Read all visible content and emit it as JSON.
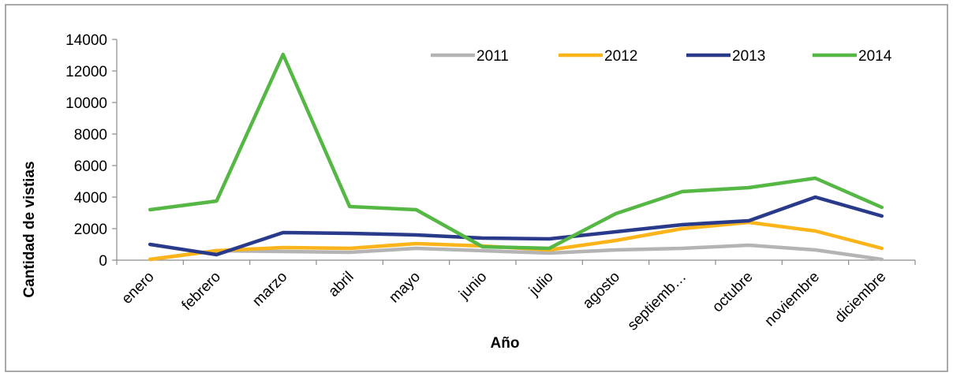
{
  "chart_data": {
    "type": "line",
    "title": "",
    "xlabel": "Año",
    "ylabel": "Cantidad de vistias",
    "ylim": [
      0,
      14000
    ],
    "yticks": [
      0,
      2000,
      4000,
      6000,
      8000,
      10000,
      12000,
      14000
    ],
    "grid": false,
    "legend_position": "top-right",
    "categories": [
      "enero",
      "febrero",
      "marzo",
      "abril",
      "mayo",
      "junio",
      "julio",
      "agosto",
      "septiemb…",
      "octubre",
      "noviembre",
      "diciembre"
    ],
    "series": [
      {
        "name": "2011",
        "color": "#b4b4b4",
        "values": [
          50,
          600,
          550,
          500,
          750,
          600,
          450,
          650,
          750,
          950,
          650,
          50
        ]
      },
      {
        "name": "2012",
        "color": "#fbb41a",
        "values": [
          50,
          600,
          800,
          750,
          1050,
          900,
          650,
          1250,
          2000,
          2400,
          1850,
          750
        ]
      },
      {
        "name": "2013",
        "color": "#2a3a8a",
        "values": [
          1000,
          350,
          1750,
          1700,
          1600,
          1400,
          1350,
          1800,
          2250,
          2500,
          4000,
          2800
        ]
      },
      {
        "name": "2014",
        "color": "#55b845",
        "values": [
          3200,
          3750,
          13050,
          3400,
          3200,
          850,
          750,
          2950,
          4350,
          4600,
          5200,
          3350
        ]
      }
    ]
  }
}
